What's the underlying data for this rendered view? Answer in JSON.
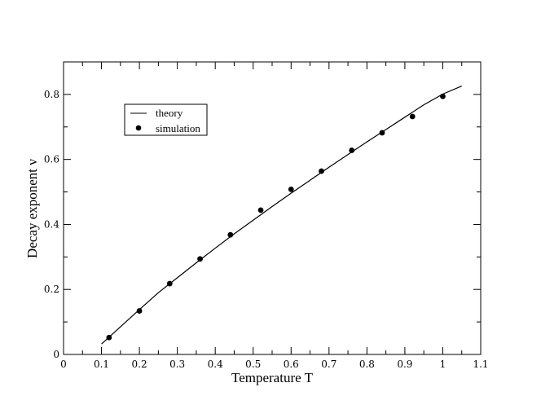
{
  "chart_data": {
    "type": "scatter",
    "xlabel": "Temperature  T",
    "ylabel": "Decay exponent  ν",
    "xlim": [
      0,
      1.1
    ],
    "ylim": [
      0,
      0.9
    ],
    "x_ticks": [
      "0",
      "0.1",
      "0.2",
      "0.3",
      "0.4",
      "0.5",
      "0.6",
      "0.7",
      "0.8",
      "0.9",
      "1",
      "1.1"
    ],
    "y_ticks": [
      "0",
      "0.2",
      "0.4",
      "0.6",
      "0.8"
    ],
    "legend_position": "top-left",
    "grid": false,
    "series": [
      {
        "name": "theory",
        "style": "line",
        "color": "#000000",
        "x": [
          0.1,
          0.15,
          0.2,
          0.25,
          0.3,
          0.35,
          0.4,
          0.45,
          0.5,
          0.55,
          0.6,
          0.65,
          0.7,
          0.75,
          0.8,
          0.85,
          0.9,
          0.95,
          1.0,
          1.05
        ],
        "y": [
          0.032,
          0.085,
          0.138,
          0.19,
          0.236,
          0.282,
          0.327,
          0.371,
          0.413,
          0.455,
          0.496,
          0.536,
          0.576,
          0.615,
          0.654,
          0.692,
          0.73,
          0.768,
          0.801,
          0.826
        ]
      },
      {
        "name": "simulation",
        "style": "points",
        "color": "#000000",
        "x": [
          0.12,
          0.2,
          0.28,
          0.36,
          0.44,
          0.52,
          0.6,
          0.68,
          0.76,
          0.84,
          0.92,
          1.0
        ],
        "y": [
          0.052,
          0.134,
          0.218,
          0.294,
          0.368,
          0.444,
          0.508,
          0.564,
          0.628,
          0.682,
          0.732,
          0.794
        ]
      }
    ]
  }
}
